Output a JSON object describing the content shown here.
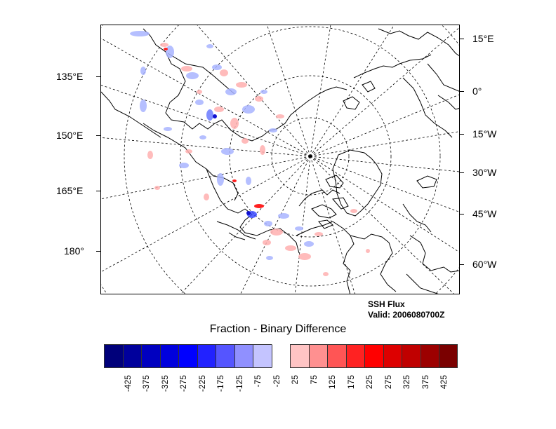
{
  "map": {
    "projection": "north-polar-stereographic",
    "left_labels": [
      "135°E",
      "150°E",
      "165°E",
      "180°"
    ],
    "right_labels": [
      "15°E",
      "0°",
      "15°W",
      "30°W",
      "45°W",
      "60°W"
    ]
  },
  "caption": {
    "line1": "SSH Flux",
    "line2": "Valid: 2006080700Z"
  },
  "colorbar": {
    "title": "Fraction - Binary Difference",
    "labels": [
      "-425",
      "-375",
      "-325",
      "-275",
      "-225",
      "-175",
      "-125",
      "-75",
      "-25",
      "25",
      "75",
      "125",
      "175",
      "225",
      "275",
      "325",
      "375",
      "425"
    ],
    "colors": [
      "#00007a",
      "#00009c",
      "#0000c0",
      "#0000dd",
      "#0000ff",
      "#2222ff",
      "#5555ff",
      "#9090ff",
      "#c4c4ff",
      "#ffffff",
      "#ffc4c4",
      "#ff9090",
      "#ff5555",
      "#ff2222",
      "#ff0000",
      "#dd0000",
      "#c00000",
      "#9c0000",
      "#7a0000"
    ]
  },
  "chart_data": {
    "type": "heatmap",
    "title": "Fraction - Binary Difference",
    "variable": "SSH Flux",
    "valid_time": "2006080700Z",
    "levels": [
      -425,
      -375,
      -325,
      -275,
      -225,
      -175,
      -125,
      -75,
      -25,
      25,
      75,
      125,
      175,
      225,
      275,
      325,
      375,
      425
    ],
    "longitude_labels_left": [
      "135°E",
      "150°E",
      "165°E",
      "180°"
    ],
    "longitude_labels_right": [
      "15°E",
      "0°",
      "15°W",
      "30°W",
      "45°W",
      "60°W"
    ]
  }
}
